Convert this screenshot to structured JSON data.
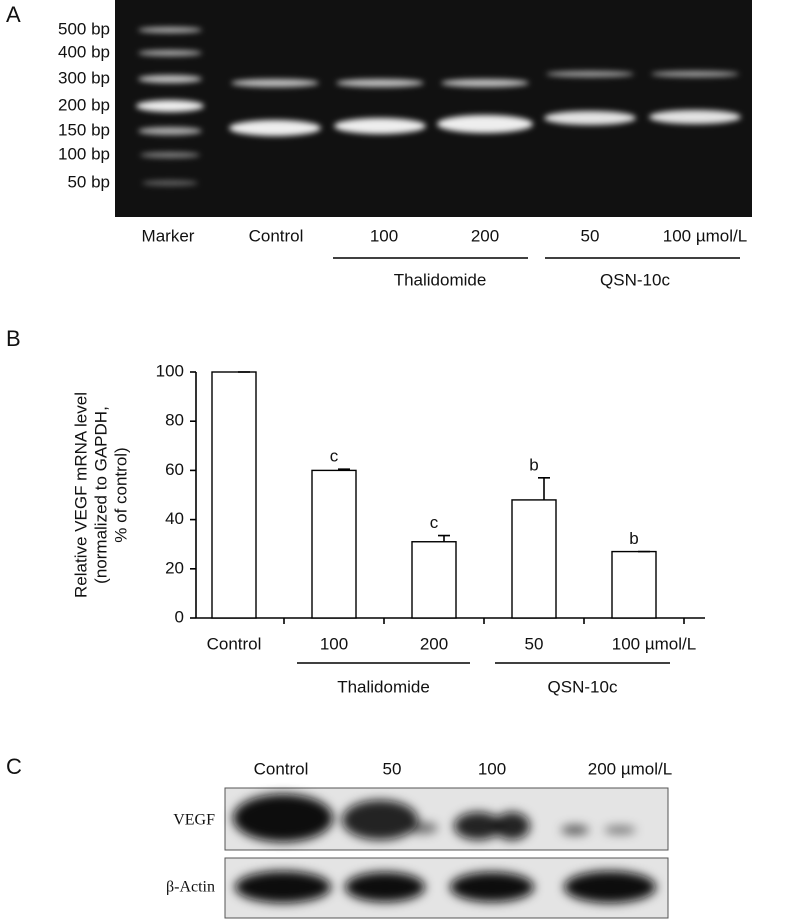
{
  "panel_a": {
    "label": "A",
    "size_markers": [
      "500 bp",
      "400 bp",
      "300 bp",
      "200 bp",
      "150 bp",
      "100 bp",
      "50 bp"
    ],
    "lanes": [
      "Marker",
      "Control",
      "100",
      "200",
      "50",
      "100 µmol/L"
    ],
    "groups": [
      "Thalidomide",
      "QSN-10c"
    ]
  },
  "chart_data": {
    "type": "bar",
    "panel_label": "B",
    "ylabel": [
      "Relative VEGF mRNA level",
      "(normalized to GAPDH,",
      "% of control)"
    ],
    "categories": [
      "Control",
      "100",
      "200",
      "50",
      "100 µmol/L"
    ],
    "values": [
      100,
      60,
      31,
      48,
      27
    ],
    "errors": [
      0,
      0.5,
      2.5,
      9,
      0
    ],
    "significance": [
      null,
      "c",
      "c",
      "b",
      "b"
    ],
    "groups": [
      "Thalidomide",
      "QSN-10c"
    ],
    "color": "#ffffff",
    "ylim": [
      0,
      100
    ],
    "yticks": [
      0,
      20,
      40,
      60,
      80,
      100
    ]
  },
  "panel_c": {
    "label": "C",
    "lanes": [
      "Control",
      "50",
      "100",
      "200 µmol/L"
    ],
    "rows": [
      "VEGF",
      "β-Actin"
    ]
  }
}
